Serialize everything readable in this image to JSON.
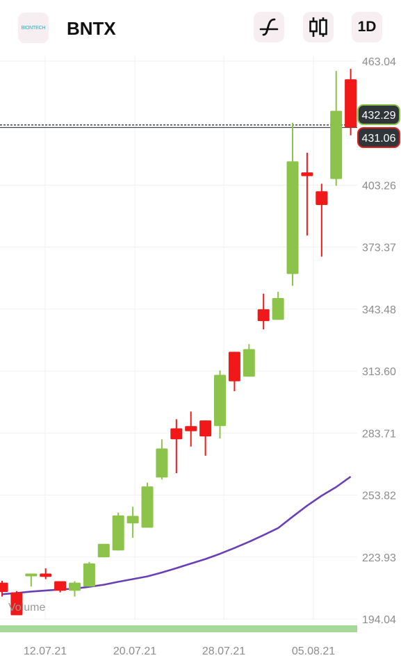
{
  "header": {
    "logo_text": "BIONTECH",
    "symbol": "BNTX",
    "indicator_icon": "function-icon",
    "chart_type_icon": "candlestick-icon",
    "period": "1D"
  },
  "colors": {
    "up": "#8cc34a",
    "down": "#f01818",
    "moving_average": "#6a3fb5",
    "volume": "#a5d99a",
    "tag_bg": "#2f3538",
    "tag_green_border": "#8cc34a",
    "tag_red_border": "#e02020"
  },
  "chart_data": {
    "type": "candlestick",
    "y_ticks": [
      "463.04",
      "403.26",
      "373.37",
      "343.48",
      "313.60",
      "283.71",
      "253.82",
      "223.93",
      "194.04"
    ],
    "x_ticks": [
      "12.07.21",
      "20.07.21",
      "28.07.21",
      "05.08.21"
    ],
    "price_tags": [
      {
        "label": "432.29",
        "value": 432.29,
        "style": "green",
        "line": "dashed"
      },
      {
        "label": "431.06",
        "value": 431.06,
        "style": "red",
        "line": "solid"
      }
    ],
    "volume_label": "Volume",
    "ylim": [
      194.04,
      463.04
    ],
    "candles": [
      {
        "date": "08.07",
        "open": 211.6,
        "high": 212.5,
        "low": 204.9,
        "close": 207.1
      },
      {
        "date": "09.07",
        "open": 206.9,
        "high": 207.5,
        "low": 195.9,
        "close": 195.9
      },
      {
        "date": "12.07",
        "open": 214.7,
        "high": 215.9,
        "low": 209.7,
        "close": 216.0
      },
      {
        "date": "13.07",
        "open": 216.0,
        "high": 218.5,
        "low": 213.3,
        "close": 214.4
      },
      {
        "date": "14.07",
        "open": 212.3,
        "high": 212.3,
        "low": 206.9,
        "close": 207.7
      },
      {
        "date": "15.07",
        "open": 207.7,
        "high": 212.3,
        "low": 204.9,
        "close": 211.6
      },
      {
        "date": "16.07",
        "open": 209.7,
        "high": 221.6,
        "low": 209.7,
        "close": 220.9
      },
      {
        "date": "19.07",
        "open": 223.8,
        "high": 230.1,
        "low": 223.8,
        "close": 230.3
      },
      {
        "date": "20.07",
        "open": 227.1,
        "high": 245.4,
        "low": 227.1,
        "close": 244.0
      },
      {
        "date": "21.07",
        "open": 240.2,
        "high": 248.2,
        "low": 233.2,
        "close": 243.8
      },
      {
        "date": "22.07",
        "open": 238.1,
        "high": 259.8,
        "low": 238.1,
        "close": 258.0
      },
      {
        "date": "23.07",
        "open": 262.3,
        "high": 280.7,
        "low": 261.4,
        "close": 276.3
      },
      {
        "date": "26.07",
        "open": 286.0,
        "high": 290.4,
        "low": 264.4,
        "close": 280.7
      },
      {
        "date": "27.07",
        "open": 287.1,
        "high": 294.1,
        "low": 277.2,
        "close": 284.6
      },
      {
        "date": "28.07",
        "open": 289.8,
        "high": 289.8,
        "low": 272.8,
        "close": 282.1
      },
      {
        "date": "29.07",
        "open": 287.1,
        "high": 313.9,
        "low": 281.1,
        "close": 311.8
      },
      {
        "date": "30.07",
        "open": 322.9,
        "high": 322.9,
        "low": 303.9,
        "close": 308.7
      },
      {
        "date": "02.08",
        "open": 310.9,
        "high": 326.6,
        "low": 310.9,
        "close": 324.2
      },
      {
        "date": "03.08",
        "open": 343.4,
        "high": 350.9,
        "low": 333.7,
        "close": 337.7
      },
      {
        "date": "04.08",
        "open": 338.3,
        "high": 351.8,
        "low": 338.3,
        "close": 348.8
      },
      {
        "date": "05.08",
        "open": 360.4,
        "high": 433.3,
        "low": 354.7,
        "close": 414.7
      },
      {
        "date": "06.08",
        "open": 409.4,
        "high": 418.9,
        "low": 379.0,
        "close": 407.6
      },
      {
        "date": "09.08",
        "open": 400.3,
        "high": 403.9,
        "low": 368.8,
        "close": 393.7
      },
      {
        "date": "10.08",
        "open": 406.2,
        "high": 458.3,
        "low": 402.9,
        "close": 439.1
      },
      {
        "date": "11.08",
        "open": 454.3,
        "high": 459.3,
        "low": 427.3,
        "close": 431.1
      }
    ],
    "moving_average": {
      "name": "Moving average",
      "values": [
        206.0,
        206.6,
        207.3,
        207.8,
        208.3,
        208.7,
        209.6,
        210.6,
        212.0,
        213.3,
        214.6,
        216.5,
        218.6,
        220.8,
        223.0,
        225.5,
        228.3,
        231.3,
        234.5,
        237.9,
        243.4,
        248.7,
        253.5,
        257.7,
        262.7
      ]
    }
  }
}
